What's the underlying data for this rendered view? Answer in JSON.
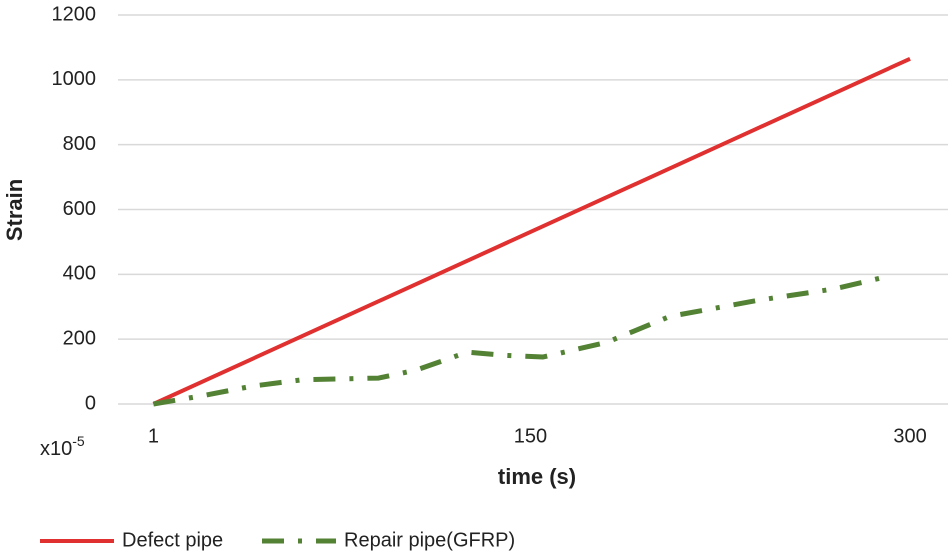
{
  "chart_data": {
    "type": "line",
    "x_label": "time (s)",
    "y_label": "Strain",
    "y_unit_base": "x10",
    "y_unit_exponent": "-5",
    "xlim": [
      -13,
      315
    ],
    "xticks": [
      1,
      150,
      300
    ],
    "ylim": [
      0,
      1200
    ],
    "yticks": [
      0,
      200,
      400,
      600,
      800,
      1000,
      1200
    ],
    "grid": true,
    "legend": "bottom",
    "series": [
      {
        "name": "Defect pipe",
        "color": "#e03030",
        "style": "solid",
        "x": [
          1,
          300
        ],
        "values": [
          0,
          1065
        ]
      },
      {
        "name": "Repair pipe(GFRP)",
        "color": "#548235",
        "style": "dashdot",
        "x": [
          1,
          20,
          40,
          60,
          90,
          105,
          125,
          140,
          155,
          180,
          205,
          240,
          270,
          292
        ],
        "values": [
          0,
          25,
          55,
          75,
          80,
          105,
          160,
          150,
          145,
          190,
          270,
          320,
          355,
          395
        ]
      }
    ]
  }
}
